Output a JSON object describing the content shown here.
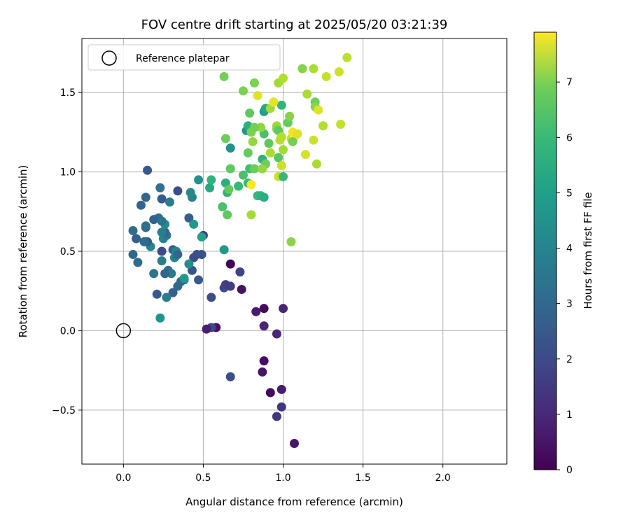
{
  "chart_data": {
    "type": "scatter",
    "title": "FOV centre drift starting at 2025/05/20 03:21:39",
    "xlabel": "Angular distance from reference (arcmin)",
    "ylabel": "Rotation from reference (arcmin)",
    "xlim": [
      -0.26,
      2.4
    ],
    "ylim": [
      -0.84,
      1.84
    ],
    "xticks": [
      0.0,
      0.5,
      1.0,
      1.5,
      2.0
    ],
    "xtick_labels": [
      "0.0",
      "0.5",
      "1.0",
      "1.5",
      "2.0"
    ],
    "yticks": [
      -0.5,
      0.0,
      0.5,
      1.0,
      1.5
    ],
    "ytick_labels": [
      "−0.5",
      "0.0",
      "0.5",
      "1.0",
      "1.5"
    ],
    "grid": true,
    "legend": {
      "location": "top-left",
      "entries": [
        "Reference platepar"
      ]
    },
    "reference_point": {
      "x": 0.0,
      "y": 0.0,
      "label": "Reference platepar"
    },
    "colorbar": {
      "label": "Hours from first FF file",
      "colormap": "viridis",
      "range": [
        0,
        7.9
      ],
      "ticks": [
        0,
        1,
        2,
        3,
        4,
        5,
        6,
        7
      ],
      "tick_labels": [
        "0",
        "1",
        "2",
        "3",
        "4",
        "5",
        "6",
        "7"
      ]
    },
    "points": [
      [
        0.67,
        0.42,
        0.1
      ],
      [
        0.88,
        0.14,
        0.2
      ],
      [
        0.74,
        0.26,
        0.4
      ],
      [
        0.83,
        0.12,
        0.6
      ],
      [
        0.88,
        0.03,
        0.8
      ],
      [
        0.96,
        -0.02,
        0.9
      ],
      [
        0.88,
        -0.19,
        0.3
      ],
      [
        0.87,
        -0.26,
        0.5
      ],
      [
        0.92,
        -0.39,
        0.2
      ],
      [
        0.99,
        -0.37,
        0.6
      ],
      [
        1.07,
        -0.71,
        0.5
      ],
      [
        0.99,
        -0.48,
        1.2
      ],
      [
        0.96,
        -0.54,
        1.3
      ],
      [
        1.0,
        0.14,
        0.8
      ],
      [
        0.58,
        0.02,
        0.4
      ],
      [
        0.55,
        0.02,
        1.7
      ],
      [
        0.52,
        0.01,
        0.7
      ],
      [
        0.67,
        -0.29,
        1.9
      ],
      [
        0.55,
        0.21,
        1.8
      ],
      [
        0.63,
        0.27,
        1.8
      ],
      [
        0.64,
        0.29,
        1.5
      ],
      [
        0.67,
        0.28,
        1.4
      ],
      [
        0.73,
        0.37,
        1.6
      ],
      [
        0.47,
        0.32,
        2.2
      ],
      [
        0.43,
        0.38,
        2.1
      ],
      [
        0.44,
        0.46,
        1.9
      ],
      [
        0.46,
        0.48,
        1.9
      ],
      [
        0.49,
        0.48,
        2.0
      ],
      [
        0.5,
        0.6,
        1.4
      ],
      [
        0.38,
        0.32,
        2.8
      ],
      [
        0.34,
        0.28,
        2.6
      ],
      [
        0.31,
        0.24,
        2.4
      ],
      [
        0.36,
        0.31,
        2.7
      ],
      [
        0.28,
        0.38,
        2.9
      ],
      [
        0.3,
        0.36,
        3.2
      ],
      [
        0.27,
        0.21,
        3.3
      ],
      [
        0.21,
        0.23,
        2.2
      ],
      [
        0.19,
        0.36,
        3.1
      ],
      [
        0.24,
        0.5,
        1.8
      ],
      [
        0.26,
        0.36,
        2.6
      ],
      [
        0.31,
        0.51,
        2.4
      ],
      [
        0.32,
        0.46,
        3.5
      ],
      [
        0.33,
        0.5,
        3.6
      ],
      [
        0.34,
        0.48,
        2.6
      ],
      [
        0.24,
        0.44,
        3.4
      ],
      [
        0.25,
        0.58,
        3.6
      ],
      [
        0.27,
        0.6,
        3.2
      ],
      [
        0.26,
        0.62,
        2.5
      ],
      [
        0.26,
        0.67,
        3.8
      ],
      [
        0.24,
        0.62,
        3.4
      ],
      [
        0.22,
        0.71,
        2.8
      ],
      [
        0.24,
        0.69,
        3.0
      ],
      [
        0.19,
        0.7,
        2.5
      ],
      [
        0.17,
        0.53,
        3.7
      ],
      [
        0.14,
        0.56,
        2.7
      ],
      [
        0.15,
        0.56,
        2.3
      ],
      [
        0.13,
        0.56,
        2.8
      ],
      [
        0.06,
        0.48,
        2.6
      ],
      [
        0.09,
        0.43,
        2.7
      ],
      [
        0.08,
        0.58,
        2.4
      ],
      [
        0.06,
        0.63,
        2.8
      ],
      [
        0.14,
        0.65,
        2.7
      ],
      [
        0.14,
        0.66,
        2.9
      ],
      [
        0.14,
        0.84,
        2.6
      ],
      [
        0.11,
        0.79,
        2.6
      ],
      [
        0.15,
        1.01,
        2.2
      ],
      [
        0.24,
        0.83,
        2.3
      ],
      [
        0.23,
        0.9,
        2.9
      ],
      [
        0.29,
        0.81,
        3.3
      ],
      [
        0.34,
        0.88,
        1.9
      ],
      [
        0.41,
        0.71,
        2.4
      ],
      [
        0.43,
        0.84,
        3.6
      ],
      [
        0.42,
        0.87,
        3.7
      ],
      [
        0.44,
        0.67,
        4.2
      ],
      [
        0.47,
        0.95,
        4.0
      ],
      [
        0.49,
        0.59,
        4.5
      ],
      [
        0.41,
        0.42,
        3.9
      ],
      [
        0.38,
        0.33,
        4.3
      ],
      [
        0.23,
        0.08,
        4.1
      ],
      [
        0.63,
        0.51,
        4.2
      ],
      [
        0.54,
        0.9,
        4.7
      ],
      [
        0.55,
        0.95,
        5.1
      ],
      [
        0.62,
        0.78,
        5.6
      ],
      [
        0.64,
        0.93,
        4.9
      ],
      [
        0.65,
        0.87,
        5.1
      ],
      [
        0.65,
        0.73,
        5.9
      ],
      [
        0.66,
        0.89,
        6.0
      ],
      [
        0.72,
        0.91,
        5.3
      ],
      [
        0.75,
        0.98,
        5.6
      ],
      [
        0.77,
        1.26,
        4.1
      ],
      [
        0.78,
        1.29,
        5.0
      ],
      [
        0.78,
        0.93,
        5.3
      ],
      [
        0.79,
        1.02,
        5.5
      ],
      [
        0.67,
        1.15,
        4.0
      ],
      [
        0.67,
        1.02,
        5.9
      ],
      [
        0.64,
        1.21,
        6.1
      ],
      [
        0.63,
        1.6,
        6.2
      ],
      [
        0.75,
        1.51,
        6.3
      ],
      [
        0.79,
        1.37,
        5.9
      ],
      [
        0.78,
        1.12,
        6.0
      ],
      [
        0.81,
        1.19,
        6.6
      ],
      [
        0.8,
        1.25,
        6.3
      ],
      [
        0.82,
        1.02,
        6.1
      ],
      [
        0.84,
        0.85,
        5.3
      ],
      [
        0.86,
        0.85,
        5.1
      ],
      [
        0.88,
        0.84,
        4.9
      ],
      [
        0.87,
        1.08,
        5.1
      ],
      [
        0.89,
        1.05,
        6.1
      ],
      [
        0.88,
        1.24,
        5.6
      ],
      [
        0.88,
        1.38,
        4.4
      ],
      [
        0.89,
        1.4,
        4.7
      ],
      [
        0.92,
        1.4,
        6.8
      ],
      [
        0.91,
        1.18,
        5.9
      ],
      [
        0.82,
        1.56,
        6.3
      ],
      [
        0.84,
        1.48,
        7.5
      ],
      [
        0.86,
        1.28,
        6.6
      ],
      [
        0.82,
        1.28,
        6.2
      ],
      [
        0.87,
        1.02,
        6.6
      ],
      [
        0.92,
        1.12,
        6.9
      ],
      [
        0.97,
        1.56,
        6.8
      ],
      [
        1.0,
        1.59,
        7.0
      ],
      [
        0.99,
        1.42,
        5.2
      ],
      [
        0.94,
        1.44,
        7.6
      ],
      [
        0.96,
        1.29,
        6.8
      ],
      [
        0.96,
        1.27,
        6.5
      ],
      [
        0.97,
        1.26,
        5.9
      ],
      [
        0.98,
        1.2,
        7.1
      ],
      [
        0.99,
        1.22,
        7.0
      ],
      [
        1.0,
        1.14,
        6.8
      ],
      [
        0.97,
        1.09,
        5.8
      ],
      [
        0.99,
        1.04,
        7.3
      ],
      [
        0.97,
        0.97,
        7.3
      ],
      [
        1.0,
        0.97,
        5.3
      ],
      [
        1.03,
        1.31,
        6.0
      ],
      [
        1.04,
        1.35,
        6.4
      ],
      [
        1.05,
        1.21,
        7.2
      ],
      [
        1.06,
        1.25,
        7.7
      ],
      [
        1.07,
        1.22,
        7.8
      ],
      [
        1.09,
        1.24,
        7.5
      ],
      [
        1.06,
        1.19,
        6.2
      ],
      [
        1.05,
        0.56,
        6.5
      ],
      [
        1.12,
        1.65,
        6.4
      ],
      [
        1.14,
        1.11,
        7.4
      ],
      [
        1.15,
        1.49,
        6.9
      ],
      [
        1.19,
        1.65,
        6.9
      ],
      [
        1.19,
        1.2,
        7.3
      ],
      [
        1.2,
        1.44,
        6.1
      ],
      [
        1.2,
        1.41,
        6.5
      ],
      [
        1.21,
        1.05,
        6.9
      ],
      [
        1.22,
        1.39,
        7.5
      ],
      [
        1.25,
        1.29,
        7.0
      ],
      [
        1.27,
        1.6,
        7.2
      ],
      [
        1.35,
        1.63,
        7.3
      ],
      [
        1.36,
        1.3,
        7.2
      ],
      [
        1.4,
        1.72,
        7.1
      ],
      [
        0.8,
        0.92,
        7.9
      ],
      [
        0.8,
        0.73,
        6.8
      ]
    ]
  }
}
